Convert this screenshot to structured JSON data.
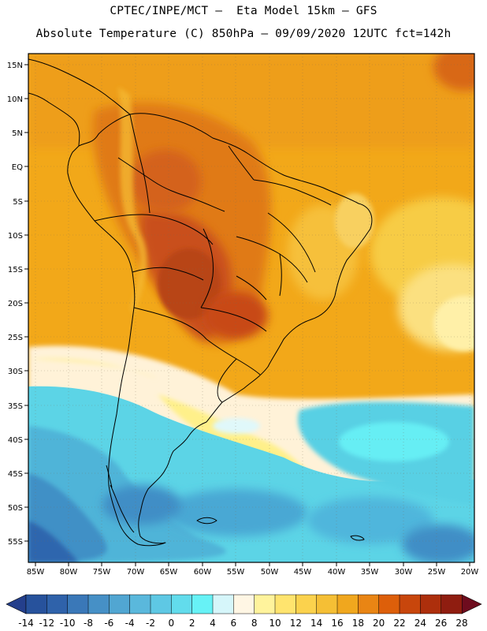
{
  "header": {
    "title_line1": "CPTEC/INPE/MCT –  Eta Model 15km – GFS",
    "title_line2": "Absolute Temperature (C) 850hPa – 09/09/2020 12UTC fct=142h"
  },
  "map": {
    "lat_labels": [
      "15N",
      "10N",
      "5N",
      "EQ",
      "5S",
      "10S",
      "15S",
      "20S",
      "25S",
      "30S",
      "35S",
      "40S",
      "45S",
      "50S",
      "55S"
    ],
    "lon_labels": [
      "85W",
      "80W",
      "75W",
      "70W",
      "65W",
      "60W",
      "55W",
      "50W",
      "45W",
      "40W",
      "35W",
      "30W",
      "25W",
      "20W"
    ]
  },
  "colorbar": {
    "labels": [
      "-14",
      "-12",
      "-10",
      "-8",
      "-6",
      "-4",
      "-2",
      "0",
      "2",
      "4",
      "6",
      "8",
      "10",
      "12",
      "14",
      "16",
      "18",
      "20",
      "22",
      "24",
      "26",
      "28"
    ],
    "below_color": "#243f8c",
    "above_color": "#6e0c1e",
    "colors": [
      "#27529c",
      "#2f62aa",
      "#3a78b8",
      "#4690c6",
      "#51a6d2",
      "#5ab8dc",
      "#5ec8e4",
      "#62dcec",
      "#67f2f6",
      "#d6f6fa",
      "#fff6e4",
      "#fff39c",
      "#ffe46e",
      "#fbd24d",
      "#f5bf35",
      "#f0a71e",
      "#e98514",
      "#dd5f0a",
      "#c8460c",
      "#ad2f0c",
      "#8f1d10"
    ]
  },
  "style": {
    "ocean_warm": "#f2a819",
    "land_hot": "#d4561a",
    "cold_water": "#60dce8"
  }
}
